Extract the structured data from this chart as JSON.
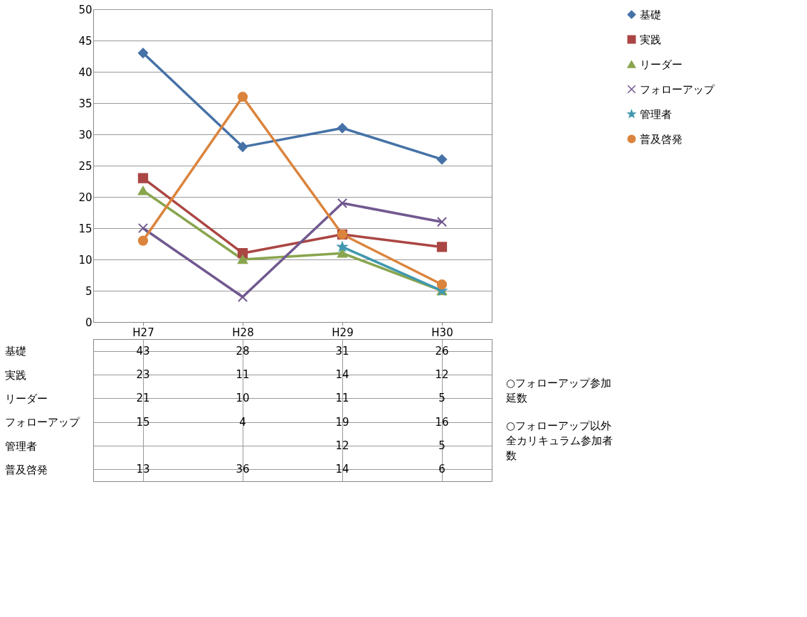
{
  "chart_data": {
    "type": "line",
    "categories": [
      "H27",
      "H28",
      "H29",
      "H30"
    ],
    "series": [
      {
        "name": "基礎",
        "color": "#4572a7",
        "marker": "diamond",
        "values": [
          43,
          28,
          31,
          26
        ]
      },
      {
        "name": "実践",
        "color": "#aa4643",
        "marker": "square",
        "values": [
          23,
          11,
          14,
          12
        ]
      },
      {
        "name": "リーダー",
        "color": "#89a54e",
        "marker": "triangle",
        "values": [
          21,
          10,
          11,
          5
        ]
      },
      {
        "name": "フォローアップ",
        "color": "#71588f",
        "marker": "cross",
        "values": [
          15,
          4,
          19,
          16
        ]
      },
      {
        "name": "管理者",
        "color": "#4198af",
        "marker": "star",
        "values": [
          null,
          null,
          12,
          5
        ]
      },
      {
        "name": "普及啓発",
        "color": "#db843d",
        "marker": "circle",
        "values": [
          13,
          36,
          14,
          6
        ]
      }
    ],
    "ylim": [
      0,
      50
    ],
    "yticks": [
      0,
      5,
      10,
      15,
      20,
      25,
      30,
      35,
      40,
      45,
      50
    ],
    "grid": "y",
    "legend": "right",
    "data_labels": true,
    "line_style": "solid",
    "annotations": [
      "○フォローアップ参加延数",
      "○フォローアップ以外全カリキュラム参加者数"
    ]
  }
}
